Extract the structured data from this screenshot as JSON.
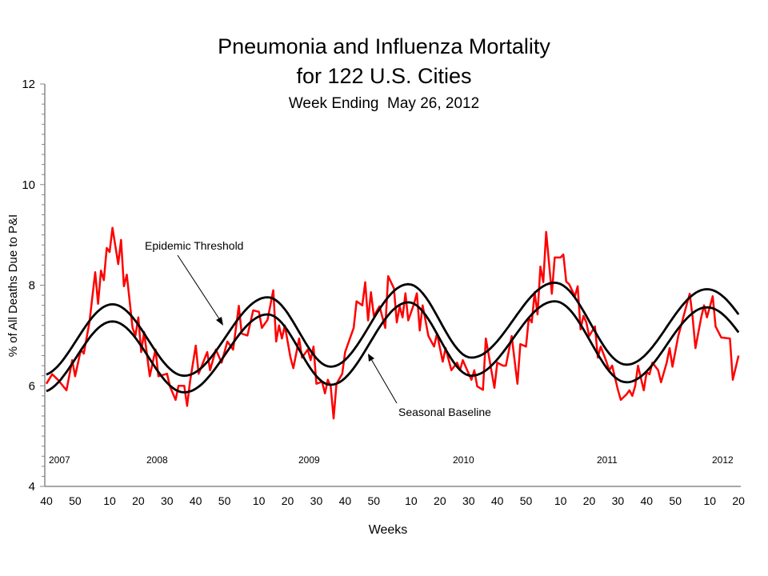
{
  "chart_data": {
    "type": "line",
    "title": "Pneumonia and Influenza Mortality",
    "title_line2": "for 122 U.S. Cities",
    "subtitle": "Week Ending  May 26, 2012",
    "xlabel": "Weeks",
    "ylabel": "% of All Deaths Due to P&I",
    "ylim": [
      4,
      12
    ],
    "yticks": [
      "4",
      "6",
      "8",
      "10",
      "12"
    ],
    "xlim": [
      "2007-W40",
      "2012-W20"
    ],
    "xtick_labels": [
      "40",
      "50",
      "10",
      "20",
      "30",
      "40",
      "50",
      "10",
      "20",
      "30",
      "40",
      "50",
      "10",
      "20",
      "30",
      "40",
      "50",
      "10",
      "20",
      "30",
      "40",
      "50",
      "10",
      "20"
    ],
    "xtick_weeks": [
      "2007-W40",
      "2007-W50",
      "2008-W10",
      "2008-W20",
      "2008-W30",
      "2008-W40",
      "2008-W50",
      "2009-W10",
      "2009-W20",
      "2009-W30",
      "2009-W40",
      "2009-W50",
      "2010-W10",
      "2010-W20",
      "2010-W30",
      "2010-W40",
      "2010-W50",
      "2011-W10",
      "2011-W20",
      "2011-W30",
      "2011-W40",
      "2011-W50",
      "2012-W10",
      "2012-W20"
    ],
    "year_labels": [
      "2007",
      "2008",
      "2009",
      "2010",
      "2011",
      "2012"
    ],
    "grid": false,
    "colors": {
      "observed": "#ff0000",
      "baseline": "#000000",
      "threshold": "#000000"
    },
    "annotations": {
      "threshold": "Epidemic Threshold",
      "baseline": "Seasonal Baseline"
    },
    "series": [
      {
        "key": "observed",
        "points": [
          [
            "2007-W40",
            6.04
          ],
          [
            "2007-W42",
            6.23
          ],
          [
            "2007-W44",
            6.12
          ],
          [
            "2007-W47",
            5.91
          ],
          [
            "2007-W49",
            6.51
          ],
          [
            "2007-W50",
            6.19
          ],
          [
            "2007-W52",
            6.72
          ],
          [
            "2008-W01",
            6.64
          ],
          [
            "2008-W03",
            7.26
          ],
          [
            "2008-W05",
            8.26
          ],
          [
            "2008-W06",
            7.63
          ],
          [
            "2008-W07",
            8.29
          ],
          [
            "2008-W08",
            8.1
          ],
          [
            "2008-W09",
            8.74
          ],
          [
            "2008-W10",
            8.66
          ],
          [
            "2008-W11",
            9.14
          ],
          [
            "2008-W13",
            8.42
          ],
          [
            "2008-W14",
            8.9
          ],
          [
            "2008-W15",
            7.98
          ],
          [
            "2008-W16",
            8.21
          ],
          [
            "2008-W18",
            7.15
          ],
          [
            "2008-W19",
            7.0
          ],
          [
            "2008-W20",
            7.36
          ],
          [
            "2008-W21",
            6.67
          ],
          [
            "2008-W22",
            7.07
          ],
          [
            "2008-W24",
            6.19
          ],
          [
            "2008-W26",
            6.72
          ],
          [
            "2008-W27",
            6.19
          ],
          [
            "2008-W30",
            6.24
          ],
          [
            "2008-W31",
            5.99
          ],
          [
            "2008-W33",
            5.72
          ],
          [
            "2008-W34",
            6.0
          ],
          [
            "2008-W36",
            6.0
          ],
          [
            "2008-W37",
            5.6
          ],
          [
            "2008-W38",
            6.08
          ],
          [
            "2008-W40",
            6.8
          ],
          [
            "2008-W41",
            6.24
          ],
          [
            "2008-W44",
            6.67
          ],
          [
            "2008-W45",
            6.31
          ],
          [
            "2008-W47",
            6.72
          ],
          [
            "2008-W49",
            6.46
          ],
          [
            "2008-W51",
            6.88
          ],
          [
            "2009-W01",
            6.72
          ],
          [
            "2009-W03",
            7.59
          ],
          [
            "2009-W04",
            7.04
          ],
          [
            "2009-W06",
            7.0
          ],
          [
            "2009-W08",
            7.5
          ],
          [
            "2009-W10",
            7.47
          ],
          [
            "2009-W11",
            7.15
          ],
          [
            "2009-W13",
            7.31
          ],
          [
            "2009-W15",
            7.9
          ],
          [
            "2009-W16",
            6.88
          ],
          [
            "2009-W17",
            7.2
          ],
          [
            "2009-W18",
            6.94
          ],
          [
            "2009-W19",
            7.2
          ],
          [
            "2009-W21",
            6.56
          ],
          [
            "2009-W22",
            6.35
          ],
          [
            "2009-W24",
            6.94
          ],
          [
            "2009-W25",
            6.56
          ],
          [
            "2009-W27",
            6.72
          ],
          [
            "2009-W28",
            6.51
          ],
          [
            "2009-W29",
            6.78
          ],
          [
            "2009-W30",
            6.04
          ],
          [
            "2009-W32",
            6.08
          ],
          [
            "2009-W33",
            5.85
          ],
          [
            "2009-W34",
            6.12
          ],
          [
            "2009-W35",
            5.99
          ],
          [
            "2009-W36",
            5.35
          ],
          [
            "2009-W37",
            6.04
          ],
          [
            "2009-W39",
            6.24
          ],
          [
            "2009-W40",
            6.67
          ],
          [
            "2009-W42",
            6.99
          ],
          [
            "2009-W43",
            7.15
          ],
          [
            "2009-W44",
            7.68
          ],
          [
            "2009-W46",
            7.6
          ],
          [
            "2009-W47",
            8.06
          ],
          [
            "2009-W48",
            7.3
          ],
          [
            "2009-W49",
            7.86
          ],
          [
            "2009-W50",
            7.39
          ],
          [
            "2009-W52",
            7.58
          ],
          [
            "2010-W01",
            7.15
          ],
          [
            "2010-W02",
            8.18
          ],
          [
            "2010-W04",
            7.94
          ],
          [
            "2010-W05",
            7.26
          ],
          [
            "2010-W06",
            7.58
          ],
          [
            "2010-W07",
            7.36
          ],
          [
            "2010-W08",
            7.84
          ],
          [
            "2010-W09",
            7.3
          ],
          [
            "2010-W11",
            7.63
          ],
          [
            "2010-W12",
            7.84
          ],
          [
            "2010-W13",
            7.1
          ],
          [
            "2010-W14",
            7.6
          ],
          [
            "2010-W16",
            6.99
          ],
          [
            "2010-W18",
            6.78
          ],
          [
            "2010-W19",
            7.04
          ],
          [
            "2010-W21",
            6.48
          ],
          [
            "2010-W22",
            6.75
          ],
          [
            "2010-W24",
            6.31
          ],
          [
            "2010-W26",
            6.46
          ],
          [
            "2010-W27",
            6.31
          ],
          [
            "2010-W28",
            6.51
          ],
          [
            "2010-W31",
            6.12
          ],
          [
            "2010-W32",
            6.31
          ],
          [
            "2010-W33",
            5.99
          ],
          [
            "2010-W35",
            5.92
          ],
          [
            "2010-W36",
            6.94
          ],
          [
            "2010-W39",
            5.96
          ],
          [
            "2010-W40",
            6.46
          ],
          [
            "2010-W42",
            6.4
          ],
          [
            "2010-W43",
            6.4
          ],
          [
            "2010-W45",
            6.99
          ],
          [
            "2010-W47",
            6.04
          ],
          [
            "2010-W48",
            6.83
          ],
          [
            "2010-W50",
            6.78
          ],
          [
            "2010-W51",
            7.36
          ],
          [
            "2010-W52",
            7.26
          ],
          [
            "2011-W01",
            7.86
          ],
          [
            "2011-W02",
            7.42
          ],
          [
            "2011-W03",
            8.37
          ],
          [
            "2011-W04",
            8.06
          ],
          [
            "2011-W05",
            9.06
          ],
          [
            "2011-W07",
            7.83
          ],
          [
            "2011-W08",
            8.55
          ],
          [
            "2011-W10",
            8.55
          ],
          [
            "2011-W11",
            8.61
          ],
          [
            "2011-W12",
            8.07
          ],
          [
            "2011-W13",
            8.02
          ],
          [
            "2011-W15",
            7.78
          ],
          [
            "2011-W16",
            7.98
          ],
          [
            "2011-W17",
            7.12
          ],
          [
            "2011-W18",
            7.39
          ],
          [
            "2011-W19",
            7.26
          ],
          [
            "2011-W20",
            6.99
          ],
          [
            "2011-W22",
            7.18
          ],
          [
            "2011-W23",
            6.56
          ],
          [
            "2011-W24",
            6.78
          ],
          [
            "2011-W26",
            6.48
          ],
          [
            "2011-W27",
            6.31
          ],
          [
            "2011-W28",
            6.4
          ],
          [
            "2011-W30",
            5.92
          ],
          [
            "2011-W31",
            5.72
          ],
          [
            "2011-W33",
            5.83
          ],
          [
            "2011-W34",
            5.91
          ],
          [
            "2011-W35",
            5.8
          ],
          [
            "2011-W36",
            5.99
          ],
          [
            "2011-W37",
            6.4
          ],
          [
            "2011-W39",
            5.91
          ],
          [
            "2011-W40",
            6.27
          ],
          [
            "2011-W41",
            6.23
          ],
          [
            "2011-W42",
            6.46
          ],
          [
            "2011-W44",
            6.31
          ],
          [
            "2011-W45",
            6.07
          ],
          [
            "2011-W47",
            6.46
          ],
          [
            "2011-W48",
            6.75
          ],
          [
            "2011-W49",
            6.38
          ],
          [
            "2011-W51",
            6.99
          ],
          [
            "2011-W52",
            7.2
          ],
          [
            "2012-W02",
            7.63
          ],
          [
            "2012-W03",
            7.83
          ],
          [
            "2012-W04",
            7.36
          ],
          [
            "2012-W05",
            6.75
          ],
          [
            "2012-W07",
            7.36
          ],
          [
            "2012-W08",
            7.6
          ],
          [
            "2012-W09",
            7.36
          ],
          [
            "2012-W11",
            7.78
          ],
          [
            "2012-W12",
            7.18
          ],
          [
            "2012-W14",
            6.96
          ],
          [
            "2012-W17",
            6.94
          ],
          [
            "2012-W18",
            6.12
          ],
          [
            "2012-W20",
            6.6
          ]
        ]
      },
      {
        "key": "threshold",
        "points": [
          [
            "2007-W40",
            6.22
          ],
          [
            "2008-W11",
            7.62
          ],
          [
            "2008-W36",
            6.2
          ],
          [
            "2009-W13",
            7.76
          ],
          [
            "2009-W35",
            6.38
          ],
          [
            "2010-W09",
            8.02
          ],
          [
            "2010-W31",
            6.56
          ],
          [
            "2011-W08",
            8.05
          ],
          [
            "2011-W33",
            6.42
          ],
          [
            "2012-W09",
            7.92
          ],
          [
            "2012-W20",
            7.28
          ]
        ]
      },
      {
        "key": "baseline",
        "points": [
          [
            "2007-W40",
            5.9
          ],
          [
            "2008-W11",
            7.28
          ],
          [
            "2008-W36",
            5.87
          ],
          [
            "2009-W13",
            7.42
          ],
          [
            "2009-W35",
            6.02
          ],
          [
            "2010-W09",
            7.66
          ],
          [
            "2010-W31",
            6.2
          ],
          [
            "2011-W08",
            7.68
          ],
          [
            "2011-W33",
            6.07
          ],
          [
            "2012-W09",
            7.56
          ],
          [
            "2012-W20",
            6.92
          ]
        ]
      }
    ]
  }
}
